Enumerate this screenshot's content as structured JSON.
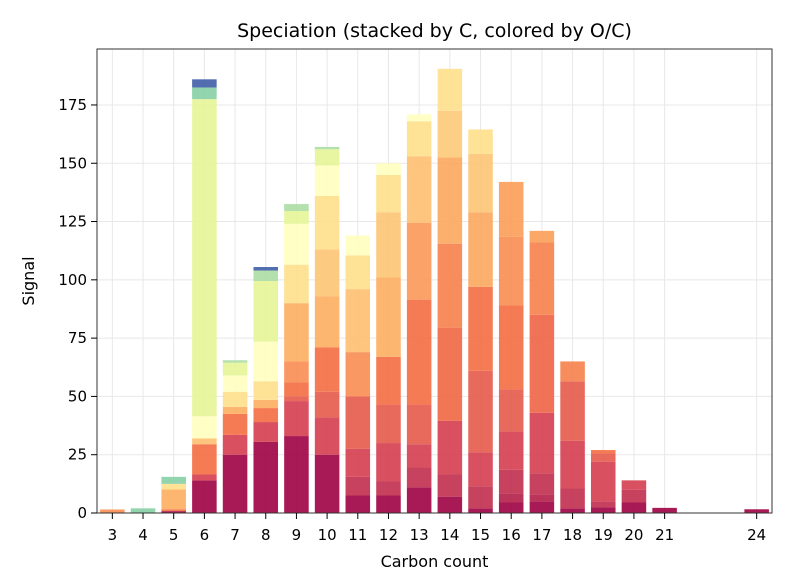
{
  "chart_data": {
    "type": "bar",
    "stacked": true,
    "title": "Speciation (stacked by C, colored by O/C)",
    "xlabel": "Carbon count",
    "ylabel": "Signal",
    "ylim": [
      0,
      199
    ],
    "xlim": [
      2.5,
      24.5
    ],
    "grid": true,
    "x_ticks": [
      "3",
      "4",
      "5",
      "6",
      "7",
      "8",
      "9",
      "10",
      "11",
      "12",
      "13",
      "14",
      "15",
      "16",
      "17",
      "18",
      "19",
      "20",
      "21",
      "24"
    ],
    "y_ticks": [
      "0",
      "25",
      "50",
      "75",
      "100",
      "125",
      "150",
      "175"
    ],
    "series_note": "Each bar is a stack of segments; segment color encodes O/C ratio (Spectral colormap).",
    "bars": [
      {
        "x": 3,
        "segments": [
          {
            "value": 1.5,
            "color": "#f88d52"
          }
        ]
      },
      {
        "x": 4,
        "segments": [
          {
            "value": 2.0,
            "color": "#86cfa5"
          }
        ]
      },
      {
        "x": 5,
        "segments": [
          {
            "value": 0.8,
            "color": "#9e0142"
          },
          {
            "value": 0.8,
            "color": "#f46d43"
          },
          {
            "value": 8.5,
            "color": "#fdae61"
          },
          {
            "value": 2.4,
            "color": "#fee08b"
          },
          {
            "value": 3.0,
            "color": "#86cfa5"
          }
        ]
      },
      {
        "x": 6,
        "segments": [
          {
            "value": 14.0,
            "color": "#9e0142"
          },
          {
            "value": 2.5,
            "color": "#d53e4f"
          },
          {
            "value": 13.0,
            "color": "#f46d43"
          },
          {
            "value": 2.5,
            "color": "#fdbf6f"
          },
          {
            "value": 9.5,
            "color": "#ffffbf"
          },
          {
            "value": 136.0,
            "color": "#e6f598"
          },
          {
            "value": 5.0,
            "color": "#86cfa5"
          },
          {
            "value": 3.5,
            "color": "#3f5ea8"
          }
        ]
      },
      {
        "x": 7,
        "segments": [
          {
            "value": 25.0,
            "color": "#9e0142"
          },
          {
            "value": 8.5,
            "color": "#d53e4f"
          },
          {
            "value": 9.0,
            "color": "#f46d43"
          },
          {
            "value": 3.0,
            "color": "#fdae61"
          },
          {
            "value": 6.5,
            "color": "#fee08b"
          },
          {
            "value": 7.0,
            "color": "#ffffbf"
          },
          {
            "value": 5.5,
            "color": "#e6f598"
          },
          {
            "value": 1.0,
            "color": "#abdda4"
          }
        ]
      },
      {
        "x": 8,
        "segments": [
          {
            "value": 30.5,
            "color": "#9e0142"
          },
          {
            "value": 8.5,
            "color": "#d53e4f"
          },
          {
            "value": 6.0,
            "color": "#f46d43"
          },
          {
            "value": 3.5,
            "color": "#fdae61"
          },
          {
            "value": 8.0,
            "color": "#fee08b"
          },
          {
            "value": 17.0,
            "color": "#ffffbf"
          },
          {
            "value": 26.0,
            "color": "#e6f598"
          },
          {
            "value": 4.5,
            "color": "#abdda4"
          },
          {
            "value": 1.5,
            "color": "#3f5ea8"
          }
        ]
      },
      {
        "x": 9,
        "segments": [
          {
            "value": 33.0,
            "color": "#9e0142"
          },
          {
            "value": 15.0,
            "color": "#d53e4f"
          },
          {
            "value": 2.0,
            "color": "#e55a4a"
          },
          {
            "value": 6.0,
            "color": "#f46d43"
          },
          {
            "value": 9.0,
            "color": "#f88d52"
          },
          {
            "value": 25.0,
            "color": "#fdae61"
          },
          {
            "value": 16.5,
            "color": "#fee08b"
          },
          {
            "value": 17.5,
            "color": "#ffffbf"
          },
          {
            "value": 5.5,
            "color": "#e6f598"
          },
          {
            "value": 3.0,
            "color": "#abdda4"
          }
        ]
      },
      {
        "x": 10,
        "segments": [
          {
            "value": 25.0,
            "color": "#9e0142"
          },
          {
            "value": 16.0,
            "color": "#d53e4f"
          },
          {
            "value": 11.0,
            "color": "#e55a4a"
          },
          {
            "value": 19.0,
            "color": "#f46d43"
          },
          {
            "value": 22.0,
            "color": "#fdae61"
          },
          {
            "value": 20.0,
            "color": "#fdc474"
          },
          {
            "value": 23.0,
            "color": "#fee08b"
          },
          {
            "value": 13.0,
            "color": "#ffffbf"
          },
          {
            "value": 7.0,
            "color": "#e6f598"
          },
          {
            "value": 1.0,
            "color": "#abdda4"
          }
        ]
      },
      {
        "x": 11,
        "segments": [
          {
            "value": 7.5,
            "color": "#9e0142"
          },
          {
            "value": 8.0,
            "color": "#c12d4c"
          },
          {
            "value": 12.0,
            "color": "#d53e4f"
          },
          {
            "value": 22.5,
            "color": "#e55a4a"
          },
          {
            "value": 19.0,
            "color": "#f88d52"
          },
          {
            "value": 27.0,
            "color": "#fdbf6f"
          },
          {
            "value": 14.5,
            "color": "#fee08b"
          },
          {
            "value": 8.5,
            "color": "#ffffbf"
          }
        ]
      },
      {
        "x": 12,
        "segments": [
          {
            "value": 7.5,
            "color": "#9e0142"
          },
          {
            "value": 6.0,
            "color": "#c12d4c"
          },
          {
            "value": 16.5,
            "color": "#d53e4f"
          },
          {
            "value": 16.5,
            "color": "#e55a4a"
          },
          {
            "value": 20.5,
            "color": "#f46d43"
          },
          {
            "value": 34.0,
            "color": "#fdae61"
          },
          {
            "value": 28.0,
            "color": "#fdc474"
          },
          {
            "value": 16.0,
            "color": "#fee08b"
          },
          {
            "value": 5.0,
            "color": "#ffffbf"
          }
        ]
      },
      {
        "x": 13,
        "segments": [
          {
            "value": 11.0,
            "color": "#9e0142"
          },
          {
            "value": 8.5,
            "color": "#c12d4c"
          },
          {
            "value": 10.0,
            "color": "#d53e4f"
          },
          {
            "value": 17.0,
            "color": "#e55a4a"
          },
          {
            "value": 45.0,
            "color": "#f46d43"
          },
          {
            "value": 33.0,
            "color": "#fa9856"
          },
          {
            "value": 28.5,
            "color": "#fdbf6f"
          },
          {
            "value": 15.0,
            "color": "#fee08b"
          },
          {
            "value": 3.0,
            "color": "#ffffbf"
          }
        ]
      },
      {
        "x": 14,
        "segments": [
          {
            "value": 7.0,
            "color": "#9e0142"
          },
          {
            "value": 9.5,
            "color": "#c12d4c"
          },
          {
            "value": 23.0,
            "color": "#d53e4f"
          },
          {
            "value": 40.0,
            "color": "#f06744"
          },
          {
            "value": 36.0,
            "color": "#f67f4b"
          },
          {
            "value": 37.0,
            "color": "#fba75d"
          },
          {
            "value": 20.0,
            "color": "#fdca79"
          },
          {
            "value": 18.0,
            "color": "#fee08b"
          }
        ]
      },
      {
        "x": 15,
        "segments": [
          {
            "value": 2.0,
            "color": "#9e0142"
          },
          {
            "value": 9.5,
            "color": "#c12d4c"
          },
          {
            "value": 14.5,
            "color": "#d53e4f"
          },
          {
            "value": 35.0,
            "color": "#e55a4a"
          },
          {
            "value": 36.0,
            "color": "#f46d43"
          },
          {
            "value": 32.0,
            "color": "#fba75d"
          },
          {
            "value": 25.0,
            "color": "#fdc474"
          },
          {
            "value": 10.5,
            "color": "#fee08b"
          }
        ]
      },
      {
        "x": 16,
        "segments": [
          {
            "value": 4.5,
            "color": "#9e0142"
          },
          {
            "value": 4.0,
            "color": "#b41f48"
          },
          {
            "value": 10.0,
            "color": "#c12d4c"
          },
          {
            "value": 16.5,
            "color": "#d53e4f"
          },
          {
            "value": 18.0,
            "color": "#e55a4a"
          },
          {
            "value": 36.0,
            "color": "#f46d43"
          },
          {
            "value": 29.5,
            "color": "#f88d52"
          },
          {
            "value": 23.5,
            "color": "#fa9d58"
          }
        ]
      },
      {
        "x": 17,
        "segments": [
          {
            "value": 5.0,
            "color": "#9e0142"
          },
          {
            "value": 3.0,
            "color": "#b41f48"
          },
          {
            "value": 9.0,
            "color": "#c12d4c"
          },
          {
            "value": 26.0,
            "color": "#d53e4f"
          },
          {
            "value": 42.0,
            "color": "#ee6445"
          },
          {
            "value": 31.0,
            "color": "#f67f4b"
          },
          {
            "value": 5.0,
            "color": "#fa9d58"
          }
        ]
      },
      {
        "x": 18,
        "segments": [
          {
            "value": 2.0,
            "color": "#9e0142"
          },
          {
            "value": 8.5,
            "color": "#c12d4c"
          },
          {
            "value": 20.5,
            "color": "#d53e4f"
          },
          {
            "value": 25.5,
            "color": "#e55a4a"
          },
          {
            "value": 8.5,
            "color": "#f67f4b"
          }
        ]
      },
      {
        "x": 19,
        "segments": [
          {
            "value": 2.5,
            "color": "#9e0142"
          },
          {
            "value": 2.5,
            "color": "#c12d4c"
          },
          {
            "value": 17.0,
            "color": "#d53e4f"
          },
          {
            "value": 3.5,
            "color": "#e55a4a"
          },
          {
            "value": 1.5,
            "color": "#f46d43"
          }
        ]
      },
      {
        "x": 20,
        "segments": [
          {
            "value": 4.5,
            "color": "#9e0142"
          },
          {
            "value": 5.5,
            "color": "#c12d4c"
          },
          {
            "value": 4.0,
            "color": "#d53e4f"
          }
        ]
      },
      {
        "x": 21,
        "segments": [
          {
            "value": 2.2,
            "color": "#9e0142"
          }
        ]
      },
      {
        "x": 24,
        "segments": [
          {
            "value": 1.6,
            "color": "#9e0142"
          }
        ]
      }
    ]
  }
}
